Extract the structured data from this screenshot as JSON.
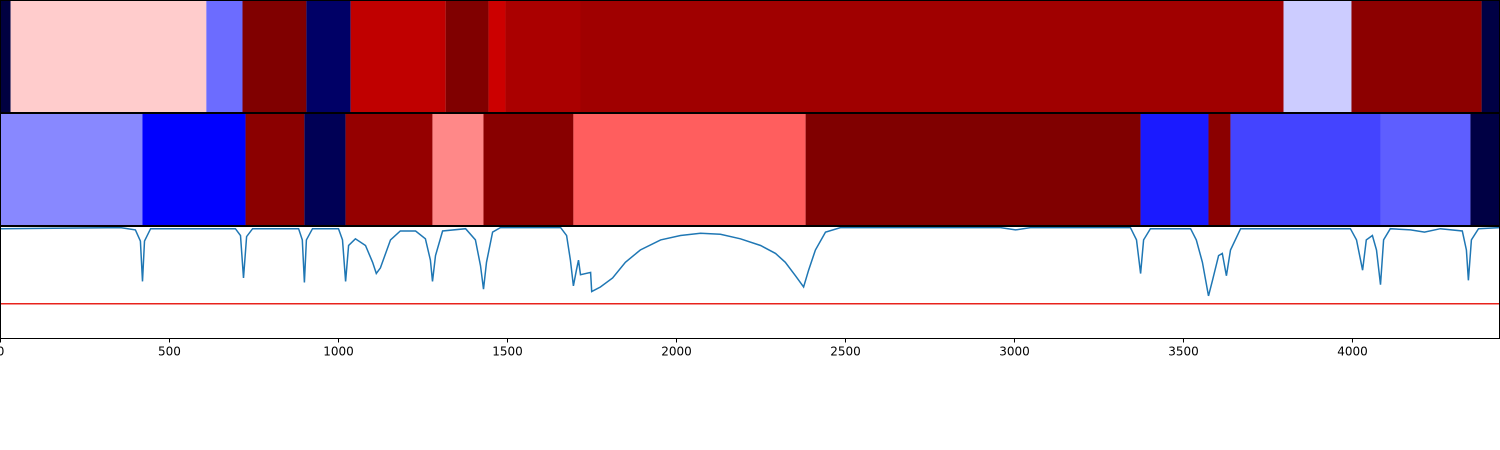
{
  "chart_data": [
    {
      "type": "strip",
      "xlim": [
        0,
        4435
      ],
      "edges": [
        0,
        30,
        609,
        716,
        905,
        1036,
        1317,
        1444,
        1494,
        1716,
        3796,
        3997,
        4382,
        4435
      ],
      "colors": [
        "#000040",
        "#ffcccc",
        "#6c6cff",
        "#800000",
        "#000066",
        "#c00000",
        "#800000",
        "#cc0000",
        "#aa0000",
        "#a00000",
        "#ccccff",
        "#8c0000",
        "#000044"
      ]
    },
    {
      "type": "strip",
      "xlim": [
        0,
        4435
      ],
      "edges": [
        0,
        420,
        725,
        899,
        1021,
        1278,
        1429,
        1695,
        2382,
        3373,
        3574,
        3639,
        4083,
        4349,
        4435
      ],
      "colors": [
        "#8888ff",
        "#0000ff",
        "#8b0000",
        "#000055",
        "#950000",
        "#ff8888",
        "#880000",
        "#ff5e5e",
        "#800000",
        "#1a1aff",
        "#8b0000",
        "#4444ff",
        "#5e5eff",
        "#000044"
      ]
    },
    {
      "type": "line",
      "xlim": [
        0,
        4435
      ],
      "ylim": [
        0,
        1
      ],
      "color": "#1f77b4",
      "xticks": [
        0,
        500,
        1000,
        1500,
        2000,
        2500,
        3000,
        3500,
        4000
      ],
      "hline": {
        "value": 0.31,
        "color": "#e8231c"
      },
      "x": [
        0,
        355,
        399,
        414,
        420,
        426,
        444,
        695,
        710,
        719,
        728,
        746,
        882,
        893,
        899,
        905,
        923,
        1000,
        1012,
        1021,
        1030,
        1050,
        1080,
        1101,
        1112,
        1124,
        1154,
        1183,
        1228,
        1257,
        1272,
        1278,
        1287,
        1308,
        1376,
        1405,
        1420,
        1429,
        1438,
        1456,
        1479,
        1657,
        1675,
        1686,
        1695,
        1704,
        1710,
        1716,
        1746,
        1749,
        1775,
        1811,
        1849,
        1893,
        1953,
        2012,
        2071,
        2130,
        2189,
        2249,
        2293,
        2322,
        2352,
        2376,
        2391,
        2411,
        2441,
        2485,
        2959,
        3003,
        3047,
        3343,
        3361,
        3373,
        3382,
        3402,
        3521,
        3538,
        3556,
        3574,
        3586,
        3604,
        3615,
        3627,
        3639,
        3669,
        3994,
        4012,
        4030,
        4041,
        4059,
        4071,
        4083,
        4092,
        4112,
        4172,
        4213,
        4260,
        4325,
        4337,
        4343,
        4352,
        4373,
        4435
      ],
      "values": [
        0.98,
        0.99,
        0.97,
        0.87,
        0.51,
        0.87,
        0.98,
        0.98,
        0.92,
        0.54,
        0.91,
        0.98,
        0.98,
        0.88,
        0.5,
        0.88,
        0.98,
        0.98,
        0.88,
        0.51,
        0.83,
        0.89,
        0.83,
        0.68,
        0.58,
        0.63,
        0.88,
        0.96,
        0.96,
        0.89,
        0.7,
        0.51,
        0.74,
        0.96,
        0.98,
        0.88,
        0.65,
        0.44,
        0.68,
        0.95,
        0.99,
        0.99,
        0.92,
        0.7,
        0.47,
        0.61,
        0.7,
        0.57,
        0.59,
        0.42,
        0.46,
        0.54,
        0.68,
        0.79,
        0.88,
        0.92,
        0.94,
        0.93,
        0.89,
        0.83,
        0.76,
        0.68,
        0.56,
        0.46,
        0.61,
        0.79,
        0.95,
        0.99,
        0.99,
        0.97,
        0.99,
        0.99,
        0.88,
        0.58,
        0.88,
        0.98,
        0.98,
        0.88,
        0.68,
        0.38,
        0.52,
        0.74,
        0.76,
        0.56,
        0.79,
        0.98,
        0.98,
        0.88,
        0.61,
        0.88,
        0.92,
        0.79,
        0.48,
        0.88,
        0.98,
        0.97,
        0.95,
        0.98,
        0.96,
        0.79,
        0.52,
        0.88,
        0.98,
        0.99
      ]
    }
  ]
}
